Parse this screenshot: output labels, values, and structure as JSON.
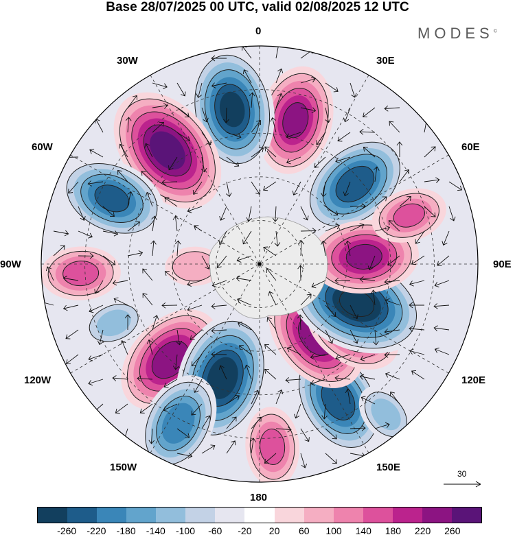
{
  "title": "Base 28/07/2025 00 UTC, valid 02/08/2025 12 UTC",
  "brand": "MODES",
  "brand_mark": "©",
  "longitude_labels": {
    "n0": "0",
    "n30e": "30E",
    "n60e": "60E",
    "n90e": "90E",
    "n120e": "120E",
    "n150e": "150E",
    "n180": "180",
    "n150w": "150W",
    "n120w": "120W",
    "n90w": "90W",
    "n60w": "60W",
    "n30w": "30W"
  },
  "reference_vector": {
    "label": "30",
    "icon": "arrow-right-icon"
  },
  "colorbar": {
    "colors": [
      "#123f5e",
      "#1e5c8a",
      "#3a86b8",
      "#62a4cc",
      "#92bedc",
      "#c3d2e6",
      "#e6e6f0",
      "#ffffff",
      "#f9d6dc",
      "#f5aec2",
      "#ee83ad",
      "#dd519c",
      "#bb238d",
      "#8c1482",
      "#5a1478"
    ],
    "tick_labels": [
      "-260",
      "-220",
      "-180",
      "-140",
      "-100",
      "-60",
      "-20",
      "20",
      "60",
      "100",
      "140",
      "180",
      "220",
      "260"
    ]
  },
  "anomaly_centers": [
    {
      "lon": 50,
      "r": 0.57,
      "value": -220
    },
    {
      "lon": 14,
      "r": 0.68,
      "value": 200
    },
    {
      "lon": -10,
      "r": 0.72,
      "value": -240
    },
    {
      "lon": -39,
      "r": 0.67,
      "value": 260
    },
    {
      "lon": -66,
      "r": 0.74,
      "value": -200
    },
    {
      "lon": -93,
      "r": 0.82,
      "value": 120
    },
    {
      "lon": -92,
      "r": 0.3,
      "value": 60
    },
    {
      "lon": -112,
      "r": 0.72,
      "value": -80
    },
    {
      "lon": -137,
      "r": 0.6,
      "value": 220
    },
    {
      "lon": -162,
      "r": 0.55,
      "value": -260
    },
    {
      "lon": -153,
      "r": 0.82,
      "value": -180
    },
    {
      "lon": 176,
      "r": 0.84,
      "value": 120
    },
    {
      "lon": 150,
      "r": 0.72,
      "value": -220
    },
    {
      "lon": 142,
      "r": 0.42,
      "value": 220
    },
    {
      "lon": 125,
      "r": 0.52,
      "value": 180
    },
    {
      "lon": 112,
      "r": 0.48,
      "value": -280
    },
    {
      "lon": 86,
      "r": 0.48,
      "value": 200
    },
    {
      "lon": 72,
      "r": 0.72,
      "value": 110
    },
    {
      "lon": 140,
      "r": 0.9,
      "value": -80
    }
  ]
}
